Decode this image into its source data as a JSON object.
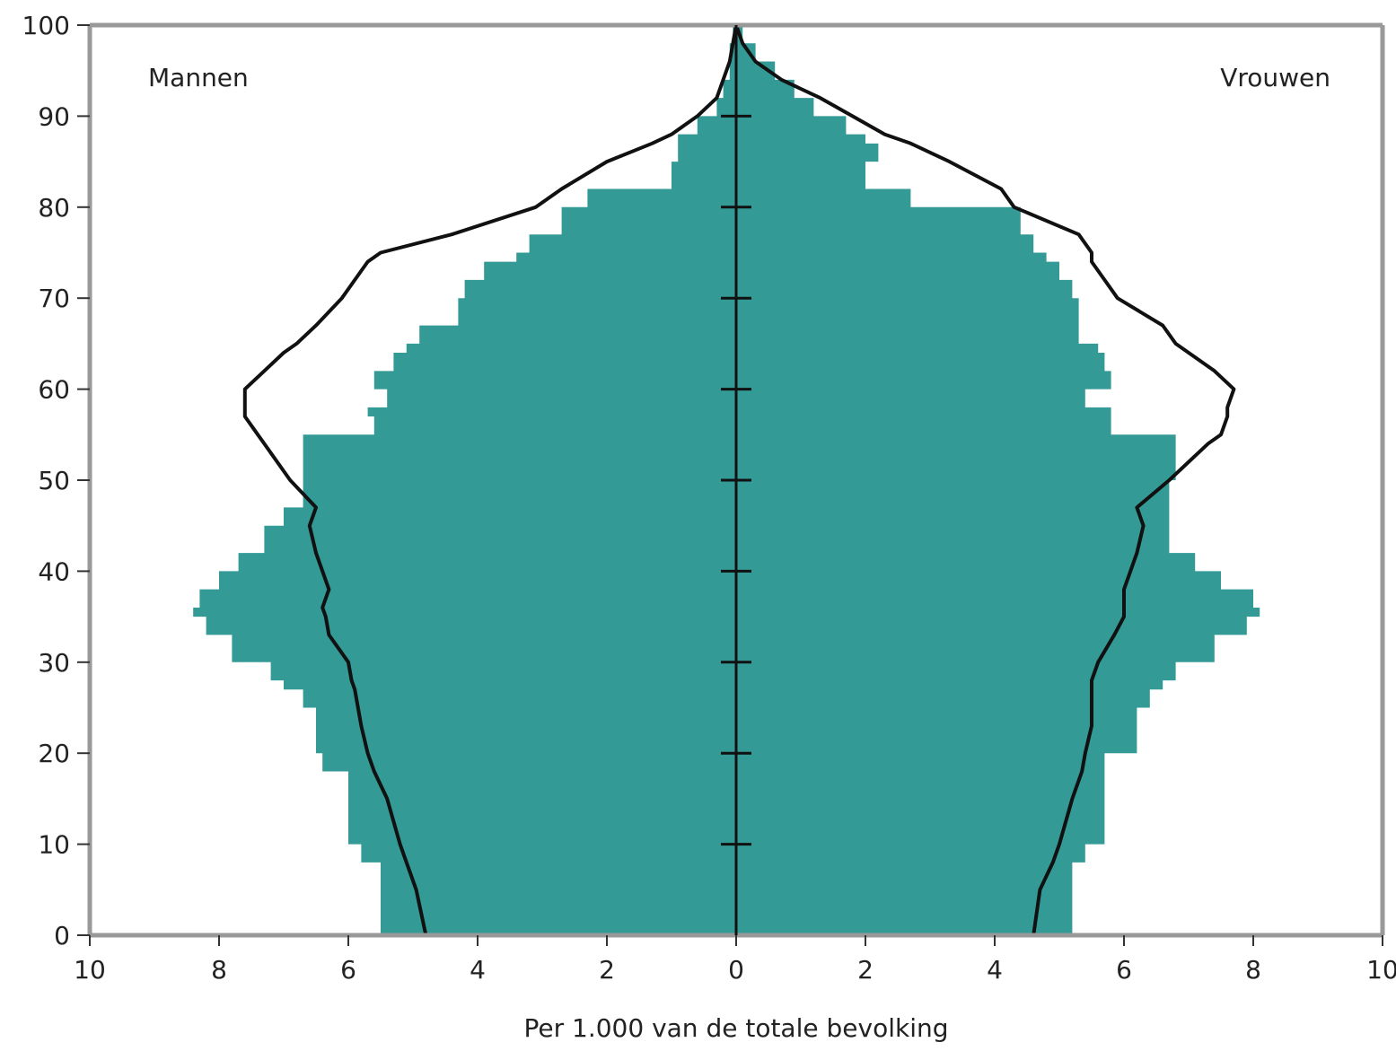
{
  "chart_data": {
    "type": "area",
    "subtype": "population-pyramid",
    "xlabel": "Per 1.000 van de totale bevolking",
    "ylabel": "",
    "xlim": [
      -10,
      10
    ],
    "ylim": [
      0,
      100
    ],
    "x_ticks": [
      -10,
      -8,
      -6,
      -4,
      -2,
      0,
      2,
      4,
      6,
      8,
      10
    ],
    "x_tick_labels": [
      "10",
      "8",
      "6",
      "4",
      "2",
      "0",
      "2",
      "4",
      "6",
      "8",
      "10"
    ],
    "y_ticks": [
      0,
      10,
      20,
      30,
      40,
      50,
      60,
      70,
      80,
      90,
      100
    ],
    "y_tick_labels": [
      "0",
      "10",
      "20",
      "30",
      "40",
      "50",
      "60",
      "70",
      "80",
      "90",
      "100"
    ],
    "left_group_label": "Mannen",
    "right_group_label": "Vrouwen",
    "grid": false,
    "colors": {
      "fill": "#339a96",
      "line": "#111111",
      "axis": "#999999"
    },
    "ages": [
      0,
      5,
      8,
      10,
      15,
      18,
      20,
      23,
      25,
      27,
      28,
      30,
      33,
      35,
      36,
      38,
      40,
      42,
      45,
      47,
      50,
      54,
      55,
      57,
      58,
      60,
      62,
      64,
      65,
      67,
      70,
      72,
      74,
      75,
      77,
      80,
      82,
      85,
      87,
      88,
      90,
      92,
      94,
      96,
      98,
      100
    ],
    "series": [
      {
        "name": "Mannen",
        "side": "left",
        "kind": "fill",
        "values": [
          5.5,
          5.5,
          5.8,
          6.0,
          6.0,
          6.4,
          6.5,
          6.5,
          6.7,
          7.0,
          7.2,
          7.8,
          8.2,
          8.4,
          8.3,
          8.0,
          7.7,
          7.3,
          7.0,
          6.7,
          6.7,
          6.7,
          5.6,
          5.7,
          5.4,
          5.6,
          5.3,
          5.1,
          4.9,
          4.3,
          4.2,
          3.9,
          3.4,
          3.2,
          2.7,
          2.3,
          1.0,
          0.9,
          0.9,
          0.6,
          0.3,
          0.2,
          0.1,
          0.1,
          0.05,
          0.0
        ]
      },
      {
        "name": "Vrouwen",
        "side": "right",
        "kind": "fill",
        "values": [
          5.2,
          5.2,
          5.4,
          5.7,
          5.7,
          5.7,
          6.2,
          6.2,
          6.4,
          6.6,
          6.8,
          7.4,
          7.9,
          8.1,
          8.0,
          7.5,
          7.1,
          6.7,
          6.7,
          6.7,
          6.8,
          6.8,
          5.8,
          5.8,
          5.4,
          5.8,
          5.7,
          5.6,
          5.3,
          5.3,
          5.2,
          5.0,
          4.8,
          4.6,
          4.4,
          2.7,
          2.0,
          2.2,
          2.0,
          1.7,
          1.2,
          0.9,
          0.6,
          0.3,
          0.1,
          0.0
        ]
      },
      {
        "name": "Mannen",
        "side": "left",
        "kind": "line",
        "values": [
          4.8,
          4.95,
          5.1,
          5.2,
          5.4,
          5.6,
          5.7,
          5.8,
          5.85,
          5.9,
          5.95,
          6.0,
          6.3,
          6.35,
          6.4,
          6.3,
          6.4,
          6.5,
          6.6,
          6.5,
          6.9,
          7.3,
          7.4,
          7.6,
          7.6,
          7.6,
          7.3,
          7.0,
          6.8,
          6.5,
          6.1,
          5.9,
          5.7,
          5.5,
          4.4,
          3.1,
          2.7,
          2.0,
          1.3,
          1.0,
          0.6,
          0.3,
          0.2,
          0.1,
          0.05,
          0.0
        ]
      },
      {
        "name": "Vrouwen",
        "side": "right",
        "kind": "line",
        "values": [
          4.6,
          4.7,
          4.9,
          5.0,
          5.2,
          5.35,
          5.4,
          5.5,
          5.5,
          5.5,
          5.5,
          5.6,
          5.85,
          6.0,
          6.0,
          6.0,
          6.1,
          6.2,
          6.3,
          6.2,
          6.7,
          7.3,
          7.5,
          7.6,
          7.6,
          7.7,
          7.4,
          7.0,
          6.8,
          6.6,
          5.9,
          5.7,
          5.5,
          5.5,
          5.3,
          4.3,
          4.1,
          3.3,
          2.7,
          2.3,
          1.8,
          1.3,
          0.7,
          0.3,
          0.1,
          0.0
        ]
      }
    ]
  }
}
